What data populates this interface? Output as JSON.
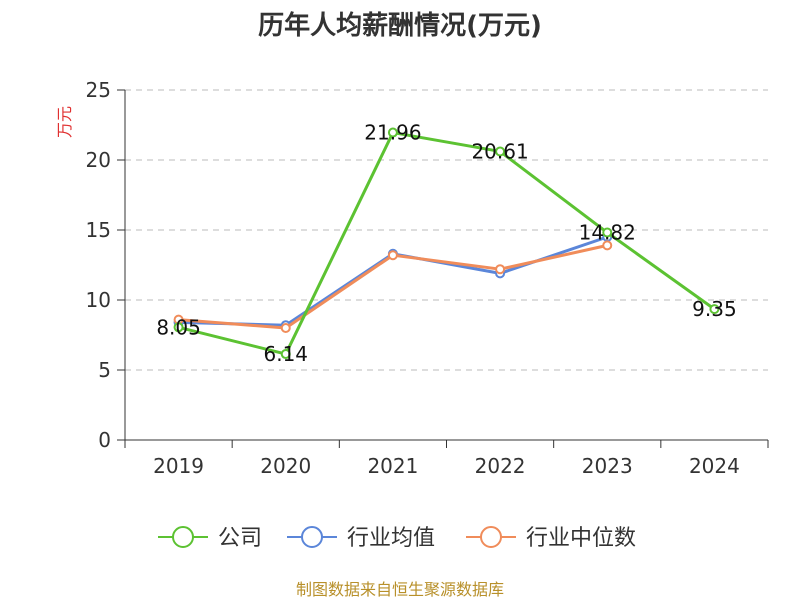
{
  "chart_data": {
    "type": "line",
    "title": "历年人均薪酬情况(万元)",
    "ylabel": "万元",
    "xlabel": "",
    "categories": [
      "2019",
      "2020",
      "2021",
      "2022",
      "2023",
      "2024"
    ],
    "ylim": [
      0,
      25
    ],
    "yticks": [
      0,
      5,
      10,
      15,
      20,
      25
    ],
    "grid": true,
    "legend_position": "bottom",
    "series": [
      {
        "name": "公司",
        "color": "#5cc232",
        "values": [
          8.05,
          6.14,
          21.96,
          20.61,
          14.82,
          9.35
        ],
        "data_labels": [
          "8.05",
          "6.14",
          "21.96",
          "20.61",
          "14.82",
          "9.35"
        ]
      },
      {
        "name": "行业均值",
        "color": "#5b86d9",
        "values": [
          8.4,
          8.2,
          13.3,
          11.9,
          14.5,
          null
        ]
      },
      {
        "name": "行业中位数",
        "color": "#f08c5a",
        "values": [
          8.6,
          8.0,
          13.2,
          12.2,
          13.9,
          null
        ]
      }
    ]
  },
  "source_text": "制图数据来自恒生聚源数据库"
}
